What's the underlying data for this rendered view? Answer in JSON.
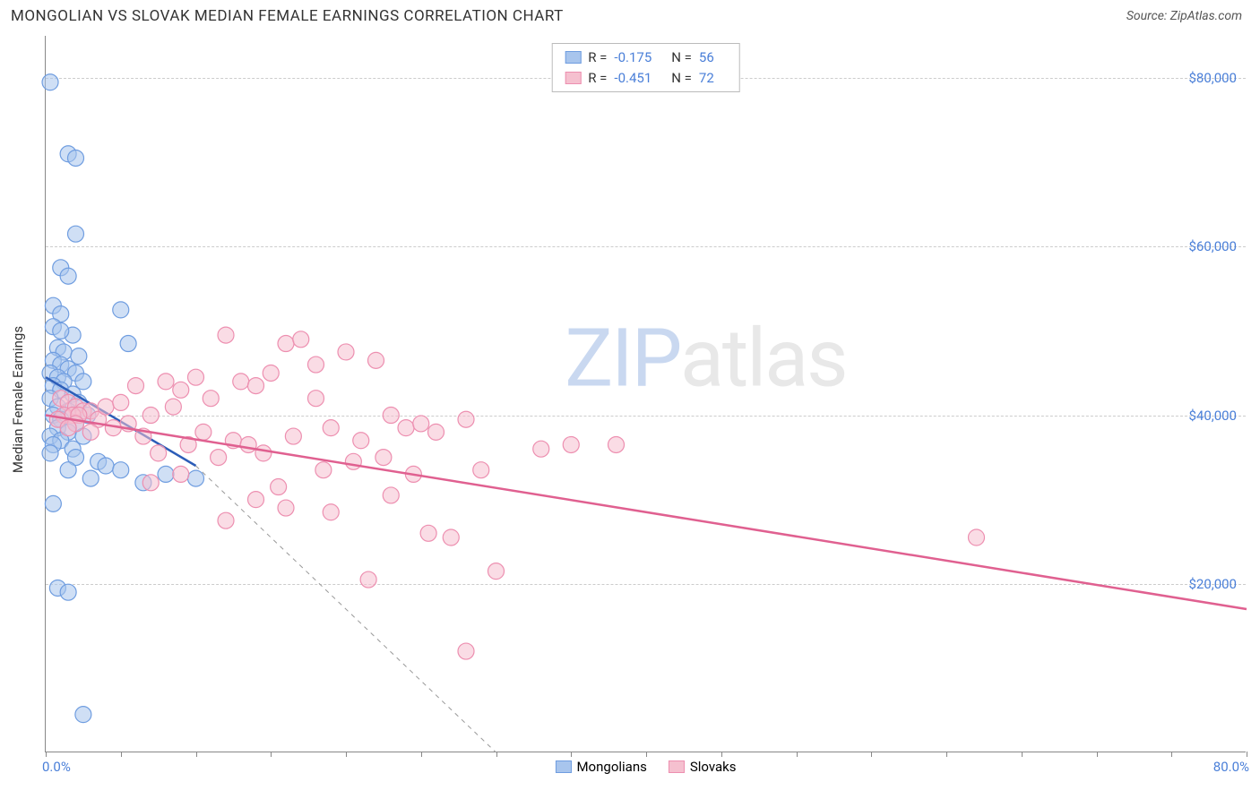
{
  "header": {
    "title": "MONGOLIAN VS SLOVAK MEDIAN FEMALE EARNINGS CORRELATION CHART",
    "source_prefix": "Source: ",
    "source_name": "ZipAtlas.com"
  },
  "chart": {
    "type": "scatter",
    "ylabel": "Median Female Earnings",
    "background_color": "#ffffff",
    "grid_color": "#cccccc",
    "axis_color": "#888888",
    "text_color": "#333333",
    "value_color": "#4a7fd8",
    "marker_radius": 9,
    "marker_opacity": 0.55,
    "line_width": 2.5,
    "xlim": [
      0,
      80
    ],
    "ylim": [
      0,
      85000
    ],
    "xaxis_min_label": "0.0%",
    "xaxis_max_label": "80.0%",
    "xtick_positions": [
      0,
      5,
      10,
      15,
      20,
      25,
      30,
      35,
      40,
      45,
      50,
      55,
      60,
      65,
      70,
      75,
      80
    ],
    "yticks": [
      {
        "v": 20000,
        "label": "$20,000"
      },
      {
        "v": 40000,
        "label": "$40,000"
      },
      {
        "v": 60000,
        "label": "$60,000"
      },
      {
        "v": 80000,
        "label": "$80,000"
      }
    ],
    "series": [
      {
        "name": "Mongolians",
        "color_fill": "#a8c5ed",
        "color_stroke": "#6f9de0",
        "trend_color": "#2c5db8",
        "R_label": "R = ",
        "R": "-0.175",
        "N_label": "N = ",
        "N": "56",
        "trend": {
          "x1": 0,
          "y1": 44500,
          "x2": 10,
          "y2": 34000
        },
        "trend_ext": {
          "x1": 10,
          "y1": 34000,
          "x2": 30,
          "y2": 0
        },
        "points": [
          [
            0.3,
            79500
          ],
          [
            1.5,
            71000
          ],
          [
            2.0,
            70500
          ],
          [
            2.0,
            61500
          ],
          [
            1.0,
            57500
          ],
          [
            1.5,
            56500
          ],
          [
            0.5,
            53000
          ],
          [
            5.0,
            52500
          ],
          [
            1.0,
            52000
          ],
          [
            0.5,
            50500
          ],
          [
            1.8,
            49500
          ],
          [
            5.5,
            48500
          ],
          [
            0.8,
            48000
          ],
          [
            1.2,
            47500
          ],
          [
            2.2,
            47000
          ],
          [
            0.5,
            46500
          ],
          [
            1.0,
            46000
          ],
          [
            1.5,
            45500
          ],
          [
            0.3,
            45000
          ],
          [
            2.0,
            45000
          ],
          [
            0.8,
            44500
          ],
          [
            1.2,
            44000
          ],
          [
            2.5,
            44000
          ],
          [
            0.5,
            43500
          ],
          [
            1.0,
            43000
          ],
          [
            1.8,
            42500
          ],
          [
            0.3,
            42000
          ],
          [
            2.2,
            41500
          ],
          [
            0.8,
            41000
          ],
          [
            1.5,
            40500
          ],
          [
            0.5,
            40000
          ],
          [
            2.8,
            40000
          ],
          [
            1.0,
            39500
          ],
          [
            2.0,
            39000
          ],
          [
            0.8,
            38500
          ],
          [
            1.5,
            38000
          ],
          [
            0.3,
            37500
          ],
          [
            2.5,
            37500
          ],
          [
            1.0,
            37000
          ],
          [
            0.5,
            36500
          ],
          [
            1.8,
            36000
          ],
          [
            0.3,
            35500
          ],
          [
            2.0,
            35000
          ],
          [
            3.5,
            34500
          ],
          [
            4.0,
            34000
          ],
          [
            5.0,
            33500
          ],
          [
            8.0,
            33000
          ],
          [
            1.5,
            33500
          ],
          [
            3.0,
            32500
          ],
          [
            6.5,
            32000
          ],
          [
            10.0,
            32500
          ],
          [
            0.5,
            29500
          ],
          [
            0.8,
            19500
          ],
          [
            1.5,
            19000
          ],
          [
            2.5,
            4500
          ],
          [
            1.0,
            50000
          ]
        ]
      },
      {
        "name": "Slovaks",
        "color_fill": "#f5c0cf",
        "color_stroke": "#ed8fb0",
        "trend_color": "#e06090",
        "R_label": "R = ",
        "R": "-0.451",
        "N_label": "N = ",
        "N": "72",
        "trend": {
          "x1": 0,
          "y1": 40000,
          "x2": 80,
          "y2": 17000
        },
        "points": [
          [
            1.0,
            42000
          ],
          [
            1.5,
            41500
          ],
          [
            2.0,
            41000
          ],
          [
            2.5,
            40500
          ],
          [
            1.2,
            40000
          ],
          [
            1.8,
            40000
          ],
          [
            3.0,
            40500
          ],
          [
            2.2,
            40000
          ],
          [
            0.8,
            39500
          ],
          [
            3.5,
            39500
          ],
          [
            4.0,
            41000
          ],
          [
            2.0,
            39000
          ],
          [
            5.0,
            41500
          ],
          [
            1.5,
            38500
          ],
          [
            3.0,
            38000
          ],
          [
            6.0,
            43500
          ],
          [
            4.5,
            38500
          ],
          [
            8.0,
            44000
          ],
          [
            5.5,
            39000
          ],
          [
            7.0,
            40000
          ],
          [
            9.0,
            43000
          ],
          [
            10.0,
            44500
          ],
          [
            6.5,
            37500
          ],
          [
            8.5,
            41000
          ],
          [
            12.0,
            49500
          ],
          [
            11.0,
            42000
          ],
          [
            13.0,
            44000
          ],
          [
            9.5,
            36500
          ],
          [
            7.5,
            35500
          ],
          [
            14.0,
            43500
          ],
          [
            10.5,
            38000
          ],
          [
            15.0,
            45000
          ],
          [
            12.5,
            37000
          ],
          [
            16.0,
            48500
          ],
          [
            11.5,
            35000
          ],
          [
            17.0,
            49000
          ],
          [
            13.5,
            36500
          ],
          [
            18.0,
            46000
          ],
          [
            14.5,
            35500
          ],
          [
            20.0,
            47500
          ],
          [
            16.5,
            37500
          ],
          [
            22.0,
            46500
          ],
          [
            19.0,
            38500
          ],
          [
            21.0,
            37000
          ],
          [
            23.0,
            40000
          ],
          [
            18.5,
            33500
          ],
          [
            24.0,
            38500
          ],
          [
            20.5,
            34500
          ],
          [
            25.0,
            39000
          ],
          [
            22.5,
            35000
          ],
          [
            26.0,
            38000
          ],
          [
            24.5,
            33000
          ],
          [
            28.0,
            39500
          ],
          [
            15.5,
            31500
          ],
          [
            14.0,
            30000
          ],
          [
            16.0,
            29000
          ],
          [
            19.0,
            28500
          ],
          [
            23.0,
            30500
          ],
          [
            12.0,
            27500
          ],
          [
            35.0,
            36500
          ],
          [
            29.0,
            33500
          ],
          [
            25.5,
            26000
          ],
          [
            27.0,
            25500
          ],
          [
            30.0,
            21500
          ],
          [
            21.5,
            20500
          ],
          [
            33.0,
            36000
          ],
          [
            38.0,
            36500
          ],
          [
            18.0,
            42000
          ],
          [
            28.0,
            12000
          ],
          [
            62.0,
            25500
          ],
          [
            7.0,
            32000
          ],
          [
            9.0,
            33000
          ]
        ]
      }
    ],
    "watermark": {
      "part1": "ZIP",
      "part2": "atlas"
    }
  }
}
